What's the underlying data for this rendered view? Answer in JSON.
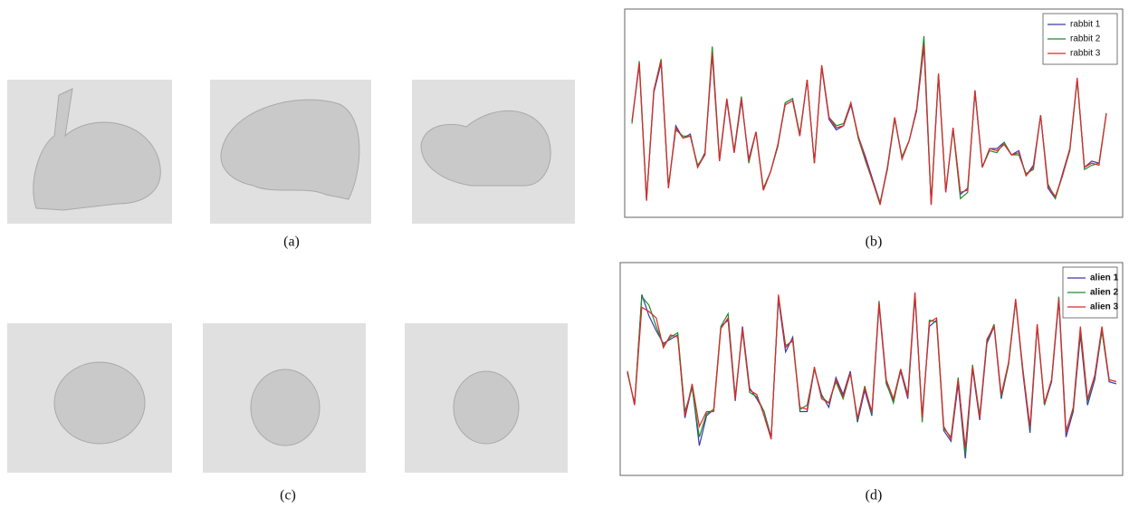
{
  "captions": [
    "(a)",
    "(b)",
    "(c)",
    "(d)"
  ],
  "chart_data": [
    {
      "type": "line",
      "ylim": [
        0,
        100
      ],
      "legend": "upper right",
      "legend_bold": false,
      "series": [
        {
          "name": "rabbit 1",
          "color": "#3a3aa8",
          "values": [
            46,
            73,
            8,
            60,
            74,
            14,
            44,
            38,
            40,
            24,
            31,
            78,
            27,
            56,
            31,
            56,
            28,
            41,
            13,
            22,
            35,
            55,
            57,
            39,
            66,
            26,
            72,
            47,
            42,
            44,
            54,
            39,
            29,
            18,
            7,
            24,
            48,
            28,
            37,
            51,
            82,
            6,
            68,
            12,
            43,
            11,
            14,
            60,
            24,
            33,
            33,
            36,
            30,
            32,
            20,
            25,
            49,
            14,
            9,
            21,
            33,
            66,
            24,
            27,
            26,
            50
          ]
        },
        {
          "name": "rabbit 2",
          "color": "#1e8c2a",
          "values": [
            45,
            75,
            9,
            61,
            76,
            15,
            42,
            39,
            39,
            25,
            30,
            82,
            28,
            57,
            32,
            58,
            26,
            41,
            14,
            22,
            34,
            55,
            57,
            40,
            66,
            26,
            73,
            48,
            44,
            45,
            55,
            38,
            27,
            17,
            7,
            23,
            47,
            29,
            37,
            52,
            87,
            7,
            69,
            13,
            42,
            9,
            12,
            61,
            24,
            32,
            31,
            36,
            30,
            30,
            21,
            23,
            49,
            16,
            9,
            20,
            32,
            66,
            23,
            25,
            26,
            50
          ]
        },
        {
          "name": "rabbit 3",
          "color": "#e0282a",
          "values": [
            46,
            74,
            8,
            61,
            75,
            14,
            43,
            38,
            39,
            24,
            30,
            79,
            27,
            57,
            31,
            57,
            27,
            41,
            13,
            22,
            35,
            54,
            56,
            39,
            66,
            26,
            73,
            48,
            43,
            44,
            55,
            39,
            28,
            17,
            6,
            24,
            48,
            28,
            37,
            52,
            83,
            6,
            69,
            12,
            43,
            12,
            13,
            61,
            24,
            33,
            32,
            35,
            30,
            31,
            20,
            24,
            49,
            15,
            10,
            20,
            33,
            67,
            24,
            26,
            25,
            50
          ]
        }
      ]
    },
    {
      "type": "line",
      "ylim": [
        0,
        100
      ],
      "legend": "upper right",
      "legend_bold": true,
      "series": [
        {
          "name": "alien 1",
          "color": "#3a3aa8",
          "values": [
            49,
            33,
            85,
            75,
            68,
            62,
            64,
            66,
            27,
            42,
            14,
            28,
            31,
            70,
            73,
            35,
            70,
            41,
            36,
            30,
            18,
            83,
            58,
            65,
            30,
            30,
            50,
            38,
            32,
            46,
            38,
            49,
            25,
            40,
            28,
            80,
            43,
            35,
            49,
            36,
            84,
            28,
            70,
            73,
            21,
            16,
            43,
            8,
            50,
            26,
            62,
            70,
            36,
            52,
            82,
            48,
            20,
            70,
            33,
            44,
            82,
            18,
            30,
            66,
            33,
            45,
            68,
            44,
            43
          ]
        },
        {
          "name": "alien 2",
          "color": "#1e8c2a",
          "values": [
            48,
            34,
            84,
            80,
            70,
            61,
            65,
            67,
            30,
            41,
            18,
            29,
            31,
            70,
            76,
            37,
            68,
            39,
            37,
            30,
            17,
            84,
            61,
            63,
            31,
            33,
            50,
            37,
            34,
            44,
            36,
            48,
            26,
            42,
            29,
            82,
            44,
            34,
            50,
            38,
            86,
            25,
            73,
            72,
            22,
            18,
            46,
            10,
            52,
            28,
            63,
            71,
            37,
            52,
            82,
            50,
            22,
            71,
            33,
            45,
            84,
            21,
            31,
            68,
            35,
            47,
            68,
            45,
            44
          ]
        },
        {
          "name": "alien 3",
          "color": "#e0282a",
          "values": [
            49,
            33,
            79,
            77,
            74,
            60,
            66,
            65,
            28,
            43,
            23,
            30,
            30,
            69,
            74,
            36,
            69,
            40,
            38,
            28,
            17,
            85,
            60,
            64,
            32,
            31,
            51,
            36,
            34,
            45,
            37,
            48,
            27,
            41,
            30,
            81,
            45,
            36,
            50,
            37,
            86,
            27,
            72,
            74,
            23,
            17,
            45,
            13,
            51,
            27,
            64,
            70,
            38,
            53,
            83,
            49,
            23,
            71,
            34,
            45,
            83,
            20,
            32,
            70,
            36,
            47,
            70,
            45,
            44
          ]
        }
      ]
    }
  ]
}
